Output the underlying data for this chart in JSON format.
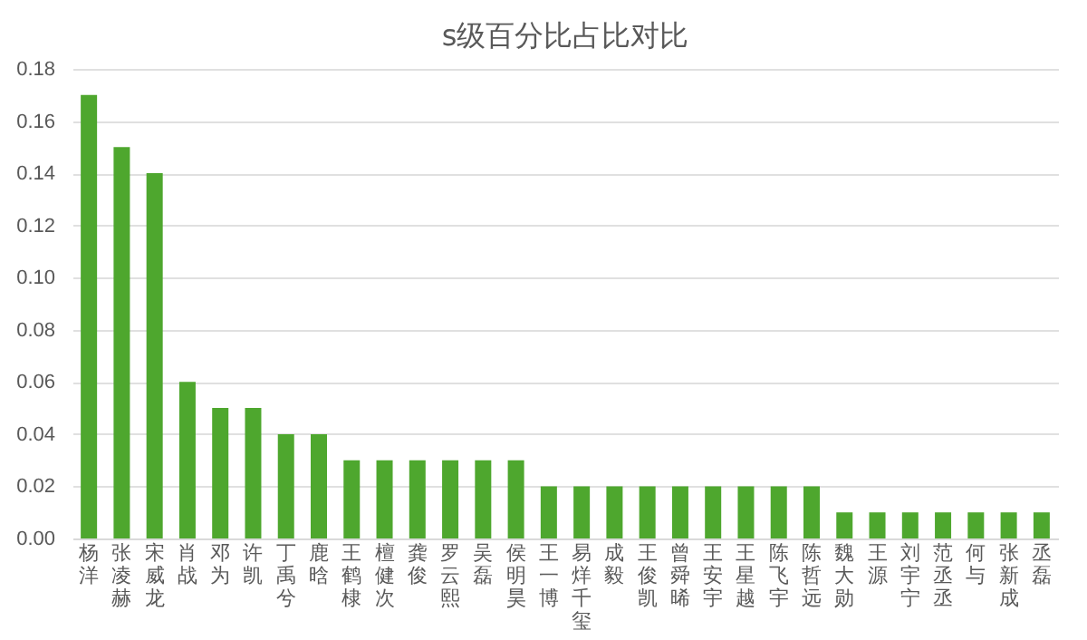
{
  "chart_data": {
    "type": "bar",
    "title": "s级百分比占比对比",
    "categories": [
      "杨洋",
      "张凌赫",
      "宋威龙",
      "肖战",
      "邓为",
      "许凯",
      "丁禹兮",
      "鹿晗",
      "王鹤棣",
      "檀健次",
      "龚俊",
      "罗云熙",
      "吴磊",
      "侯明昊",
      "王一博",
      "易烊千玺",
      "成毅",
      "王俊凯",
      "曾舜晞",
      "王安宇",
      "王星越",
      "陈飞宇",
      "陈哲远",
      "魏大勋",
      "王源",
      "刘宇宁",
      "范丞丞",
      "何与",
      "张新成",
      "丞磊"
    ],
    "values": [
      0.17,
      0.15,
      0.14,
      0.06,
      0.05,
      0.05,
      0.04,
      0.04,
      0.03,
      0.03,
      0.03,
      0.03,
      0.03,
      0.03,
      0.02,
      0.02,
      0.02,
      0.02,
      0.02,
      0.02,
      0.02,
      0.02,
      0.02,
      0.01,
      0.01,
      0.01,
      0.01,
      0.01,
      0.01,
      0.01
    ],
    "color": "#4ea72e",
    "ylim": [
      0,
      0.18
    ],
    "yticks": [
      {
        "value": 0,
        "label": "0.00"
      },
      {
        "value": 0.02,
        "label": "0.02"
      },
      {
        "value": 0.04,
        "label": "0.04"
      },
      {
        "value": 0.06,
        "label": "0.06"
      },
      {
        "value": 0.08,
        "label": "0.08"
      },
      {
        "value": 0.1,
        "label": "0.10"
      },
      {
        "value": 0.12,
        "label": "0.12"
      },
      {
        "value": 0.14,
        "label": "0.14"
      },
      {
        "value": 0.16,
        "label": "0.16"
      },
      {
        "value": 0.18,
        "label": "0.18"
      }
    ],
    "grid": "y"
  }
}
